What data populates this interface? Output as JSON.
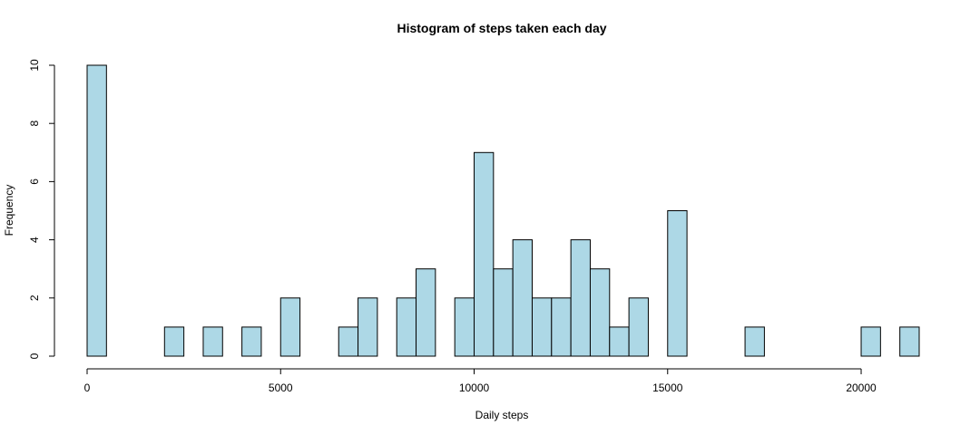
{
  "chart_data": {
    "type": "bar",
    "title": "Histogram of steps taken each day",
    "xlabel": "Daily steps",
    "ylabel": "Frequency",
    "xlim": [
      0,
      21500
    ],
    "ylim": [
      0,
      10
    ],
    "x_ticks": [
      0,
      5000,
      10000,
      15000,
      20000
    ],
    "y_ticks": [
      0,
      2,
      4,
      6,
      8,
      10
    ],
    "bin_width": 500,
    "bar_color": "#ADD8E6",
    "bins": [
      {
        "start": 0,
        "count": 10
      },
      {
        "start": 2000,
        "count": 1
      },
      {
        "start": 3000,
        "count": 1
      },
      {
        "start": 4000,
        "count": 1
      },
      {
        "start": 5000,
        "count": 2
      },
      {
        "start": 6500,
        "count": 1
      },
      {
        "start": 7000,
        "count": 2
      },
      {
        "start": 8000,
        "count": 2
      },
      {
        "start": 8500,
        "count": 3
      },
      {
        "start": 9500,
        "count": 2
      },
      {
        "start": 10000,
        "count": 7
      },
      {
        "start": 10500,
        "count": 3
      },
      {
        "start": 11000,
        "count": 4
      },
      {
        "start": 11500,
        "count": 2
      },
      {
        "start": 12000,
        "count": 2
      },
      {
        "start": 12500,
        "count": 4
      },
      {
        "start": 13000,
        "count": 3
      },
      {
        "start": 13500,
        "count": 1
      },
      {
        "start": 14000,
        "count": 2
      },
      {
        "start": 15000,
        "count": 5
      },
      {
        "start": 17000,
        "count": 1
      },
      {
        "start": 20000,
        "count": 1
      },
      {
        "start": 21000,
        "count": 1
      }
    ]
  }
}
